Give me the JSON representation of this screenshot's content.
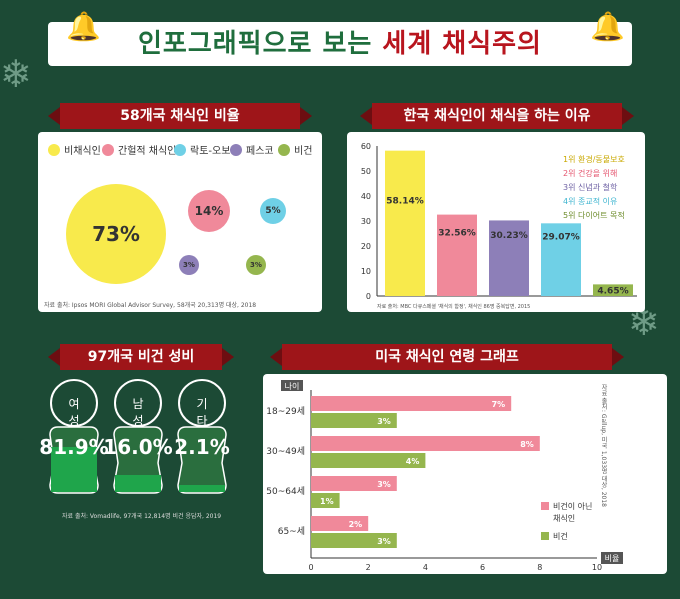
{
  "title": {
    "part1": "인포그래픽으로 보는",
    "part2": "세계 채식주의"
  },
  "colors": {
    "bg": "#1c4a35",
    "red": "#9e1519",
    "yellow": "#f8ea4c",
    "pink": "#f0899a",
    "blue": "#6fd0e6",
    "purple": "#8d7fb8",
    "green": "#95b64e"
  },
  "section1": {
    "title": "58개국 채식인 비율",
    "legend": [
      "비채식인",
      "간헐적 채식인",
      "락토-오보",
      "페스코",
      "비건"
    ],
    "values": [
      "73%",
      "14%",
      "5%",
      "3%",
      "3%"
    ],
    "source": "자료 출처: Ipsos MORI Global Advisor Survey, 58개국 20,313명 대상, 2018"
  },
  "section2": {
    "title": "한국 채식인이 채식을 하는 이유",
    "legend": [
      "1위 환경/동물보호",
      "2위 건강을 위해",
      "3위 신념과 철학",
      "4위 종교적 이유",
      "5위 다이어트 목적"
    ],
    "source": "자료 출처: MBC 다큐스페셜 '채식의 함정', 채식인 86명 중복답변, 2015"
  },
  "section3": {
    "title": "97개국 비건 성비",
    "labels": [
      "여성",
      "남성",
      "기타"
    ],
    "values": [
      "81.9%",
      "16.0%",
      "2.1%"
    ],
    "source": "자료 출처: Vomadlife, 97개국 12,814명 비건 응답자, 2019"
  },
  "section4": {
    "title": "미국 채식인 연령 그래프",
    "y_axis_title": "나이",
    "x_axis_title": "비율",
    "legend": [
      "비건이 아닌\n채식인",
      "비건"
    ],
    "source": "자료 출처: Gallup, 미국 1,033명 대상, 2018"
  },
  "chart_data": [
    {
      "type": "bubble",
      "title": "58개국 채식인 비율",
      "categories": [
        "비채식인",
        "간헐적 채식인",
        "락토-오보",
        "페스코",
        "비건"
      ],
      "values": [
        73,
        14,
        5,
        3,
        3
      ],
      "colors": [
        "#f8ea4c",
        "#f0899a",
        "#6fd0e6",
        "#8d7fb8",
        "#95b64e"
      ]
    },
    {
      "type": "bar",
      "title": "한국 채식인이 채식을 하는 이유",
      "categories": [
        "1위 환경/동물보호",
        "2위 건강을 위해",
        "3위 신념과 철학",
        "4위 종교적 이유",
        "5위 다이어트 목적"
      ],
      "values": [
        58.14,
        32.56,
        30.23,
        29.07,
        4.65
      ],
      "labels": [
        "58.14%",
        "32.56%",
        "30.23%",
        "29.07%",
        "4.65%"
      ],
      "colors": [
        "#f8ea4c",
        "#f0899a",
        "#8d7fb8",
        "#6fd0e6",
        "#95b64e"
      ],
      "ylim": [
        0,
        60
      ],
      "yticks": [
        0,
        10,
        20,
        30,
        40,
        50,
        60
      ],
      "grid": false
    },
    {
      "type": "pie",
      "title": "97개국 비건 성비",
      "categories": [
        "여성",
        "남성",
        "기타"
      ],
      "values": [
        81.9,
        16.0,
        2.1
      ]
    },
    {
      "type": "bar",
      "orientation": "horizontal",
      "title": "미국 채식인 연령 그래프",
      "categories": [
        "18~29세",
        "30~49세",
        "50~64세",
        "65~세"
      ],
      "series": [
        {
          "name": "비건이 아닌 채식인",
          "values": [
            7,
            8,
            3,
            2
          ],
          "labels": [
            "7%",
            "8%",
            "3%",
            "2%"
          ],
          "color": "#f0899a"
        },
        {
          "name": "비건",
          "values": [
            3,
            4,
            1,
            3
          ],
          "labels": [
            "3%",
            "4%",
            "1%",
            "3%"
          ],
          "color": "#95b64e"
        }
      ],
      "xlim": [
        0,
        10
      ],
      "xticks": [
        0,
        2,
        4,
        6,
        8,
        10
      ],
      "xlabel": "비율",
      "ylabel": "나이"
    }
  ]
}
